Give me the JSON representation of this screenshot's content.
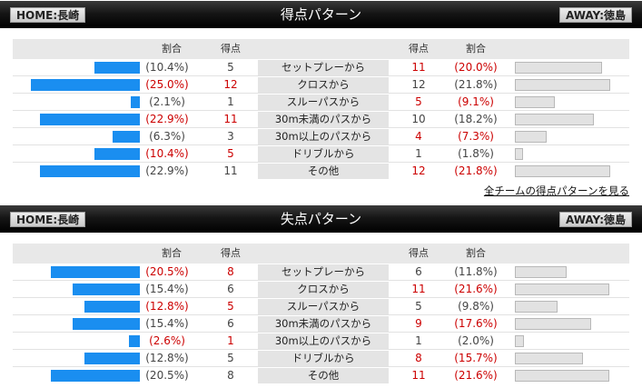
{
  "colors": {
    "home_bar": "#1a8ef0",
    "away_bar": "#e2e2e2",
    "highlight": "#cc0000",
    "header_bg": "#000000"
  },
  "headers": {
    "pct": "割合",
    "pts": "得点"
  },
  "scoring": {
    "title": "得点パターン",
    "home_label": "HOME:長崎",
    "away_label": "AWAY:徳島",
    "rows": [
      {
        "pattern": "セットプレーから",
        "home_pct": "(10.4%)",
        "home_pts": "5",
        "away_pts": "11",
        "away_pct": "(20.0%)",
        "home_share": 10.4,
        "away_share": 20.0,
        "hl": "away"
      },
      {
        "pattern": "クロスから",
        "home_pct": "(25.0%)",
        "home_pts": "12",
        "away_pts": "12",
        "away_pct": "(21.8%)",
        "home_share": 25.0,
        "away_share": 21.8,
        "hl": "home"
      },
      {
        "pattern": "スルーパスから",
        "home_pct": "(2.1%)",
        "home_pts": "1",
        "away_pts": "5",
        "away_pct": "(9.1%)",
        "home_share": 2.1,
        "away_share": 9.1,
        "hl": "away"
      },
      {
        "pattern": "30m未満のパスから",
        "home_pct": "(22.9%)",
        "home_pts": "11",
        "away_pts": "10",
        "away_pct": "(18.2%)",
        "home_share": 22.9,
        "away_share": 18.2,
        "hl": "home"
      },
      {
        "pattern": "30m以上のパスから",
        "home_pct": "(6.3%)",
        "home_pts": "3",
        "away_pts": "4",
        "away_pct": "(7.3%)",
        "home_share": 6.3,
        "away_share": 7.3,
        "hl": "away"
      },
      {
        "pattern": "ドリブルから",
        "home_pct": "(10.4%)",
        "home_pts": "5",
        "away_pts": "1",
        "away_pct": "(1.8%)",
        "home_share": 10.4,
        "away_share": 1.8,
        "hl": "home"
      },
      {
        "pattern": "その他",
        "home_pct": "(22.9%)",
        "home_pts": "11",
        "away_pts": "12",
        "away_pct": "(21.8%)",
        "home_share": 22.9,
        "away_share": 21.8,
        "hl": "away"
      }
    ]
  },
  "link_all_teams": "全チームの得点パターンを見る",
  "conceded": {
    "title": "失点パターン",
    "home_label": "HOME:長崎",
    "away_label": "AWAY:徳島",
    "rows": [
      {
        "pattern": "セットプレーから",
        "home_pct": "(20.5%)",
        "home_pts": "8",
        "away_pts": "6",
        "away_pct": "(11.8%)",
        "home_share": 20.5,
        "away_share": 11.8,
        "hl": "home"
      },
      {
        "pattern": "クロスから",
        "home_pct": "(15.4%)",
        "home_pts": "6",
        "away_pts": "11",
        "away_pct": "(21.6%)",
        "home_share": 15.4,
        "away_share": 21.6,
        "hl": "away"
      },
      {
        "pattern": "スルーパスから",
        "home_pct": "(12.8%)",
        "home_pts": "5",
        "away_pts": "5",
        "away_pct": "(9.8%)",
        "home_share": 12.8,
        "away_share": 9.8,
        "hl": "home"
      },
      {
        "pattern": "30m未満のパスから",
        "home_pct": "(15.4%)",
        "home_pts": "6",
        "away_pts": "9",
        "away_pct": "(17.6%)",
        "home_share": 15.4,
        "away_share": 17.6,
        "hl": "away"
      },
      {
        "pattern": "30m以上のパスから",
        "home_pct": "(2.6%)",
        "home_pts": "1",
        "away_pts": "1",
        "away_pct": "(2.0%)",
        "home_share": 2.6,
        "away_share": 2.0,
        "hl": "home"
      },
      {
        "pattern": "ドリブルから",
        "home_pct": "(12.8%)",
        "home_pts": "5",
        "away_pts": "8",
        "away_pct": "(15.7%)",
        "home_share": 12.8,
        "away_share": 15.7,
        "hl": "away"
      },
      {
        "pattern": "その他",
        "home_pct": "(20.5%)",
        "home_pts": "8",
        "away_pts": "11",
        "away_pct": "(21.6%)",
        "home_share": 20.5,
        "away_share": 21.6,
        "hl": "away"
      }
    ]
  }
}
